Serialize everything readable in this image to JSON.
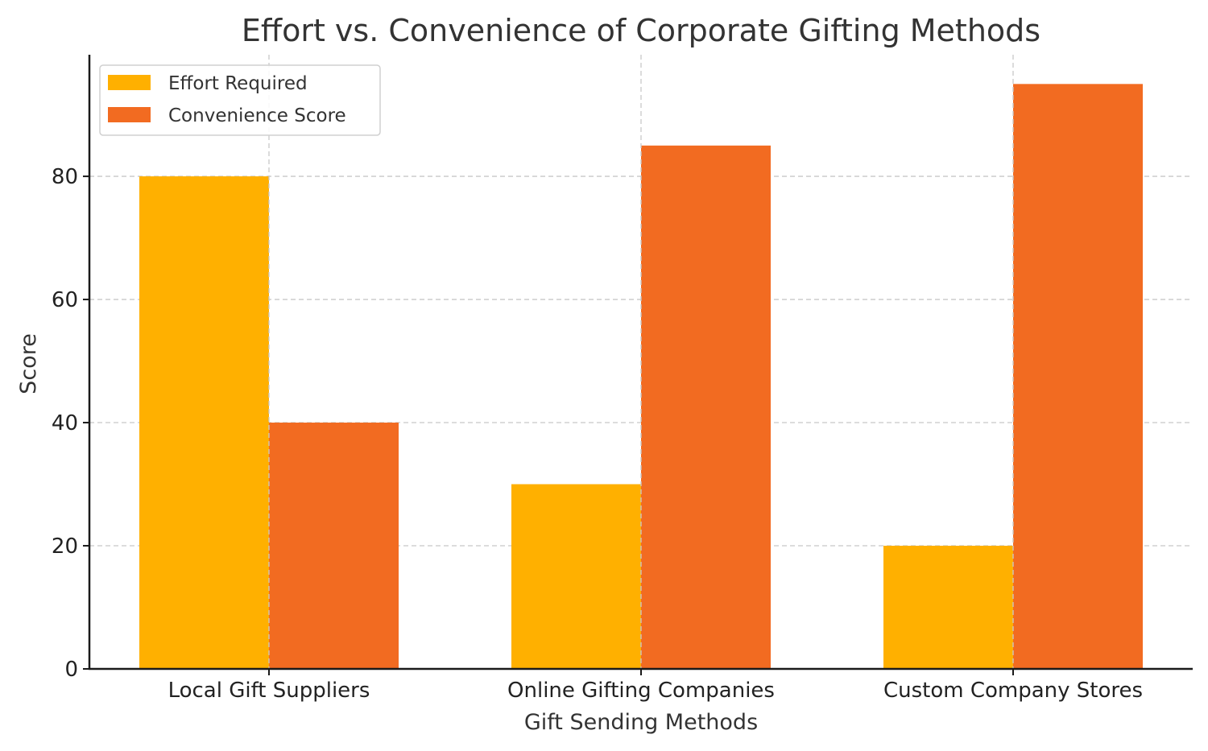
{
  "chart_data": {
    "type": "bar",
    "title": "Effort vs. Convenience of Corporate Gifting Methods",
    "xlabel": "Gift Sending Methods",
    "ylabel": "Score",
    "categories": [
      "Local Gift Suppliers",
      "Online Gifting Companies",
      "Custom Company Stores"
    ],
    "series": [
      {
        "name": "Effort Required",
        "color": "#FFB000",
        "values": [
          80,
          30,
          20
        ]
      },
      {
        "name": "Convenience Score",
        "color": "#F26B21",
        "values": [
          40,
          85,
          95
        ]
      }
    ],
    "ylim": [
      0,
      99.75
    ],
    "yticks": [
      0,
      20,
      40,
      60,
      80
    ],
    "grid": true,
    "legend_position": "top-left"
  }
}
